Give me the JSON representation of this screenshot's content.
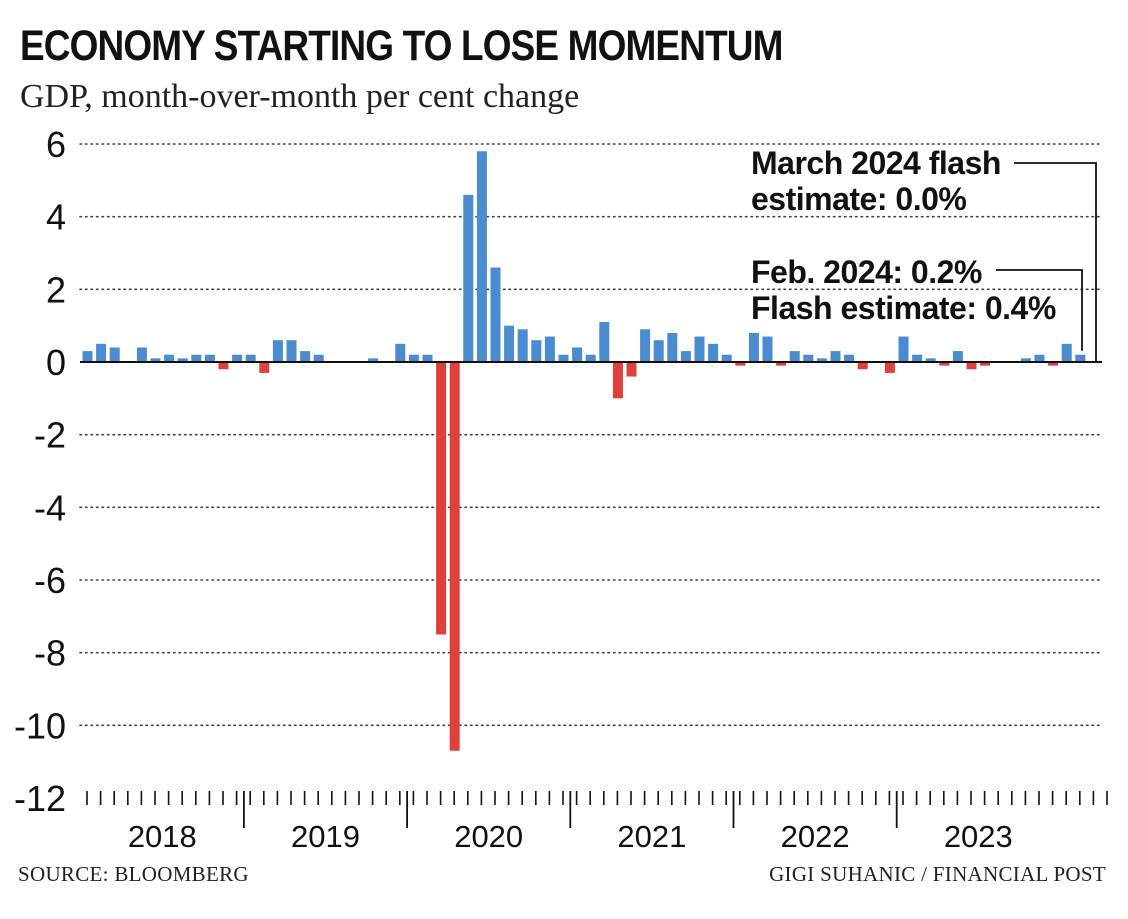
{
  "header": {
    "title": "ECONOMY STARTING TO LOSE MOMENTUM",
    "subtitle": "GDP, month-over-month per cent change"
  },
  "footer": {
    "source": "SOURCE: BLOOMBERG",
    "credit": "GIGI SUHANIC / FINANCIAL POST"
  },
  "colors": {
    "positive": "#4a8ccf",
    "negative": "#e0403b",
    "grid": "#444444",
    "axis": "#111111"
  },
  "chart_data": {
    "type": "bar",
    "title": "ECONOMY STARTING TO LOSE MOMENTUM",
    "subtitle": "GDP, month-over-month per cent change",
    "xlabel": "",
    "ylabel": "",
    "ylim": [
      -12,
      6
    ],
    "y_ticks": [
      6,
      4,
      2,
      0,
      -2,
      -4,
      -6,
      -8,
      -10,
      -12
    ],
    "y_tick_labels": [
      "6",
      "4",
      "2",
      "0",
      "-2",
      "-4",
      "-6",
      "-8",
      "-10",
      "-12"
    ],
    "grid": "horizontal dotted",
    "x_period": "monthly, Jan 2018 - Mar 2024",
    "year_labels": [
      "2018",
      "2019",
      "2020",
      "2021",
      "2022",
      "2023"
    ],
    "values": [
      0.3,
      0.5,
      0.4,
      0.0,
      0.4,
      0.1,
      0.2,
      0.1,
      0.2,
      0.2,
      -0.2,
      0.2,
      0.2,
      -0.3,
      0.6,
      0.6,
      0.3,
      0.2,
      0.0,
      0.0,
      0.0,
      0.1,
      0.0,
      0.5,
      0.2,
      0.2,
      -7.5,
      -10.7,
      4.6,
      5.8,
      2.6,
      1.0,
      0.9,
      0.6,
      0.7,
      0.2,
      0.4,
      0.2,
      1.1,
      -1.0,
      -0.4,
      0.9,
      0.6,
      0.8,
      0.3,
      0.7,
      0.5,
      0.2,
      -0.1,
      0.8,
      0.7,
      -0.1,
      0.3,
      0.2,
      0.1,
      0.3,
      0.2,
      -0.2,
      0.0,
      -0.3,
      0.7,
      0.2,
      0.1,
      -0.1,
      0.3,
      -0.2,
      -0.1,
      0.0,
      0.0,
      0.1,
      0.2,
      -0.1,
      0.5,
      0.2,
      0.0
    ],
    "annotations": [
      {
        "lines": [
          "March 2024 flash",
          "estimate: 0.0%"
        ],
        "target_index": 74
      },
      {
        "lines": [
          "Feb. 2024: 0.2%",
          "Flash estimate: 0.4%"
        ],
        "target_index": 73
      }
    ]
  }
}
